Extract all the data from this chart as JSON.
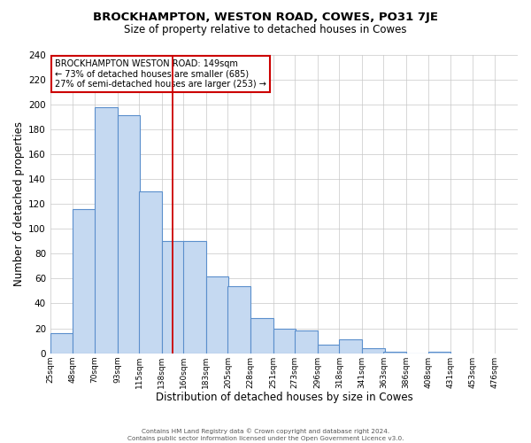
{
  "title": "BROCKHAMPTON, WESTON ROAD, COWES, PO31 7JE",
  "subtitle": "Size of property relative to detached houses in Cowes",
  "xlabel": "Distribution of detached houses by size in Cowes",
  "ylabel": "Number of detached properties",
  "bar_values": [
    16,
    116,
    198,
    191,
    130,
    90,
    90,
    62,
    54,
    28,
    20,
    18,
    7,
    11,
    4,
    1,
    0,
    1
  ],
  "bar_left_edges": [
    25,
    48,
    70,
    93,
    115,
    138,
    160,
    183,
    205,
    228,
    251,
    273,
    296,
    318,
    341,
    363,
    386,
    408
  ],
  "bin_width": 23,
  "x_tick_labels": [
    "25sqm",
    "48sqm",
    "70sqm",
    "93sqm",
    "115sqm",
    "138sqm",
    "160sqm",
    "183sqm",
    "205sqm",
    "228sqm",
    "251sqm",
    "273sqm",
    "296sqm",
    "318sqm",
    "341sqm",
    "363sqm",
    "386sqm",
    "408sqm",
    "431sqm",
    "453sqm",
    "476sqm"
  ],
  "x_tick_positions": [
    25,
    48,
    70,
    93,
    115,
    138,
    160,
    183,
    205,
    228,
    251,
    273,
    296,
    318,
    341,
    363,
    386,
    408,
    431,
    453,
    476
  ],
  "xlim_left": 25,
  "xlim_right": 499,
  "ylim": [
    0,
    240
  ],
  "yticks": [
    0,
    20,
    40,
    60,
    80,
    100,
    120,
    140,
    160,
    180,
    200,
    220,
    240
  ],
  "bar_color": "#c5d9f1",
  "bar_edge_color": "#5b8fcc",
  "grid_color": "#c8c8c8",
  "marker_x": 149,
  "marker_color": "#cc0000",
  "annotation_title": "BROCKHAMPTON WESTON ROAD: 149sqm",
  "annotation_line1": "← 73% of detached houses are smaller (685)",
  "annotation_line2": "27% of semi-detached houses are larger (253) →",
  "annotation_box_color": "#ffffff",
  "annotation_box_edge": "#cc0000",
  "footer1": "Contains HM Land Registry data © Crown copyright and database right 2024.",
  "footer2": "Contains public sector information licensed under the Open Government Licence v3.0.",
  "background_color": "#ffffff",
  "fig_width": 6.0,
  "fig_height": 5.0
}
